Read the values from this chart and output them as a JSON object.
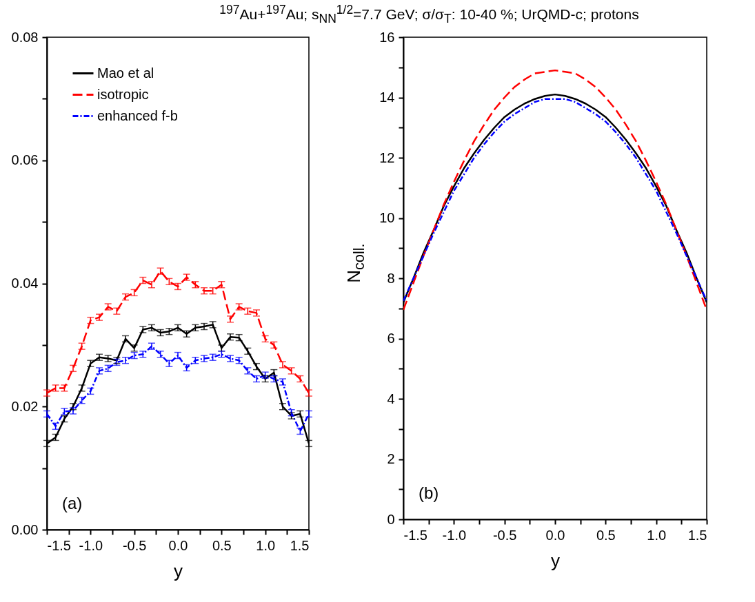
{
  "chart_data": [
    {
      "type": "line",
      "title": "$^{197}$Au+$^{197}$Au; s$_{NN}$$^{1/2}$=7.7 GeV; σ/σ$_{T}$: 10-40 %; UrQMD-c; protons",
      "xlabel": "y",
      "annotations": [
        "(a)"
      ],
      "legend": "top left",
      "x": [
        -1.5,
        -1.4,
        -1.3,
        -1.2,
        -1.1,
        -1.0,
        -0.9,
        -0.8,
        -0.7,
        -0.6,
        -0.5,
        -0.4,
        -0.3,
        -0.2,
        -0.1,
        0.0,
        0.1,
        0.2,
        0.3,
        0.4,
        0.5,
        0.6,
        0.7,
        0.8,
        0.9,
        1.0,
        1.1,
        1.2,
        1.3,
        1.4,
        1.5
      ],
      "xlim": [
        -1.5,
        1.5
      ],
      "xticks": [
        {
          "value": -1.5,
          "label": "-1.5"
        },
        {
          "value": -1.25,
          "label": null
        },
        {
          "value": -1,
          "label": "-1.0"
        },
        {
          "value": -0.75,
          "label": null
        },
        {
          "value": -0.5,
          "label": "-0.5"
        },
        {
          "value": -0.25,
          "label": null
        },
        {
          "value": 0,
          "label": "0.0"
        },
        {
          "value": 0.25,
          "label": null
        },
        {
          "value": 0.5,
          "label": "0.5"
        },
        {
          "value": 0.75,
          "label": null
        },
        {
          "value": 1,
          "label": "1.0"
        },
        {
          "value": 1.25,
          "label": null
        },
        {
          "value": 1.5,
          "label": "1.5"
        }
      ],
      "ylim": [
        0,
        0.08
      ],
      "yticks": [
        {
          "value": 0,
          "label": "0.00"
        },
        {
          "value": 0.01,
          "label": null
        },
        {
          "value": 0.02,
          "label": "0.02"
        },
        {
          "value": 0.03,
          "label": null
        },
        {
          "value": 0.04,
          "label": "0.04"
        },
        {
          "value": 0.05,
          "label": null
        },
        {
          "value": 0.06,
          "label": "0.06"
        },
        {
          "value": 0.07,
          "label": null
        },
        {
          "value": 0.08,
          "label": "0.08"
        }
      ],
      "series": [
        {
          "name": "Mao et al",
          "color": "#000000",
          "line_style": "solid",
          "values": [
            0.014,
            0.015,
            0.018,
            0.02,
            0.023,
            0.027,
            0.028,
            0.0278,
            0.0275,
            0.031,
            0.0295,
            0.0325,
            0.0328,
            0.032,
            0.0322,
            0.0328,
            0.0318,
            0.0328,
            0.033,
            0.0333,
            0.0295,
            0.0313,
            0.0312,
            0.029,
            0.0265,
            0.0245,
            0.0255,
            0.02,
            0.0185,
            0.0188,
            0.014
          ],
          "errors": [
            0.0005,
            0.0005,
            0.0005,
            0.0005,
            0.0005,
            0.0005,
            0.0005,
            0.0005,
            0.0005,
            0.0005,
            0.0005,
            0.0005,
            0.0005,
            0.0005,
            0.0005,
            0.0005,
            0.0005,
            0.0005,
            0.0005,
            0.0005,
            0.0005,
            0.0005,
            0.0005,
            0.0005,
            0.0005,
            0.0005,
            0.0005,
            0.0005,
            0.0005,
            0.0005,
            0.0005
          ]
        },
        {
          "name": "isotropic",
          "color": "#ff0000",
          "line_style": "dashed",
          "values": [
            0.0222,
            0.023,
            0.023,
            0.0262,
            0.0298,
            0.034,
            0.0345,
            0.0362,
            0.0355,
            0.0378,
            0.0385,
            0.0405,
            0.0398,
            0.042,
            0.0403,
            0.0395,
            0.041,
            0.0398,
            0.0388,
            0.0388,
            0.0398,
            0.0342,
            0.0362,
            0.0355,
            0.0352,
            0.031,
            0.03,
            0.0268,
            0.0258,
            0.0245,
            0.0222
          ],
          "errors": [
            0.0005,
            0.0005,
            0.0005,
            0.0005,
            0.0005,
            0.0005,
            0.0005,
            0.0005,
            0.0005,
            0.0005,
            0.0005,
            0.0005,
            0.0005,
            0.0005,
            0.0005,
            0.0005,
            0.0005,
            0.0005,
            0.0005,
            0.0005,
            0.0005,
            0.0005,
            0.0005,
            0.0005,
            0.0005,
            0.0005,
            0.0005,
            0.0005,
            0.0005,
            0.0005,
            0.0005
          ]
        },
        {
          "name": "enhanced f-b",
          "color": "#0000ff",
          "line_style": "dotted",
          "values": [
            0.0188,
            0.0168,
            0.0192,
            0.0193,
            0.021,
            0.0225,
            0.0258,
            0.0262,
            0.0272,
            0.0275,
            0.0283,
            0.0285,
            0.0298,
            0.0285,
            0.027,
            0.0283,
            0.0263,
            0.0275,
            0.0278,
            0.028,
            0.0285,
            0.0278,
            0.0275,
            0.0258,
            0.0245,
            0.0251,
            0.0245,
            0.024,
            0.019,
            0.016,
            0.0188
          ],
          "errors": [
            0.0005,
            0.0005,
            0.0005,
            0.0005,
            0.0005,
            0.0005,
            0.0005,
            0.0005,
            0.0005,
            0.0005,
            0.0005,
            0.0005,
            0.0005,
            0.0005,
            0.0005,
            0.0005,
            0.0005,
            0.0005,
            0.0005,
            0.0005,
            0.0005,
            0.0005,
            0.0005,
            0.0005,
            0.0005,
            0.0005,
            0.0005,
            0.0005,
            0.0005,
            0.0005,
            0.0005
          ]
        }
      ]
    },
    {
      "type": "line",
      "xlabel": "y",
      "ylabel": "N$_{coll.}$",
      "annotations": [
        "(b)"
      ],
      "x": [
        -1.5,
        -1.4,
        -1.3,
        -1.2,
        -1.1,
        -1.0,
        -0.9,
        -0.8,
        -0.7,
        -0.6,
        -0.5,
        -0.4,
        -0.3,
        -0.2,
        -0.1,
        0.0,
        0.1,
        0.2,
        0.3,
        0.4,
        0.5,
        0.6,
        0.7,
        0.8,
        0.9,
        1.0,
        1.1,
        1.2,
        1.3,
        1.4,
        1.5
      ],
      "xlim": [
        -1.5,
        1.5
      ],
      "xticks": [
        {
          "value": -1.5,
          "label": "-1.5"
        },
        {
          "value": -1.25,
          "label": null
        },
        {
          "value": -1,
          "label": "-1.0"
        },
        {
          "value": -0.75,
          "label": null
        },
        {
          "value": -0.5,
          "label": "-0.5"
        },
        {
          "value": -0.25,
          "label": null
        },
        {
          "value": 0,
          "label": "0.0"
        },
        {
          "value": 0.25,
          "label": null
        },
        {
          "value": 0.5,
          "label": "0.5"
        },
        {
          "value": 0.75,
          "label": null
        },
        {
          "value": 1,
          "label": "1.0"
        },
        {
          "value": 1.25,
          "label": null
        },
        {
          "value": 1.5,
          "label": "1.5"
        }
      ],
      "ylim": [
        0,
        16
      ],
      "yticks": [
        0,
        {
          "value": 1,
          "label": null
        },
        2,
        {
          "value": 3,
          "label": null
        },
        4,
        {
          "value": 5,
          "label": null
        },
        6,
        {
          "value": 7,
          "label": null
        },
        8,
        {
          "value": 9,
          "label": null
        },
        10,
        {
          "value": 11,
          "label": null
        },
        12,
        {
          "value": 13,
          "label": null
        },
        14,
        {
          "value": 15,
          "label": null
        },
        16
      ],
      "series": [
        {
          "color": "#000000",
          "line_style": "solid",
          "values": [
            7.2,
            8.0,
            8.85,
            9.6,
            10.4,
            11.05,
            11.65,
            12.15,
            12.6,
            13.0,
            13.35,
            13.6,
            13.8,
            13.95,
            14.05,
            14.1,
            14.05,
            13.95,
            13.8,
            13.6,
            13.35,
            13.0,
            12.6,
            12.15,
            11.65,
            11.05,
            10.4,
            9.6,
            8.85,
            8.0,
            7.2
          ]
        },
        {
          "color": "#ff0000",
          "line_style": "dashed",
          "values": [
            6.95,
            7.85,
            8.75,
            9.6,
            10.45,
            11.2,
            11.9,
            12.55,
            13.1,
            13.6,
            14.0,
            14.35,
            14.6,
            14.8,
            14.85,
            14.9,
            14.85,
            14.8,
            14.6,
            14.35,
            14.0,
            13.6,
            13.1,
            12.55,
            11.9,
            11.2,
            10.45,
            9.6,
            8.75,
            7.85,
            6.95
          ]
        },
        {
          "color": "#0000ff",
          "line_style": "dotted",
          "values": [
            7.25,
            8.0,
            8.75,
            9.5,
            10.2,
            10.9,
            11.45,
            12.0,
            12.45,
            12.85,
            13.2,
            13.45,
            13.65,
            13.85,
            13.95,
            13.95,
            13.95,
            13.85,
            13.65,
            13.45,
            13.2,
            12.85,
            12.45,
            12.0,
            11.45,
            10.9,
            10.2,
            9.5,
            8.75,
            8.0,
            7.25
          ]
        }
      ]
    }
  ]
}
